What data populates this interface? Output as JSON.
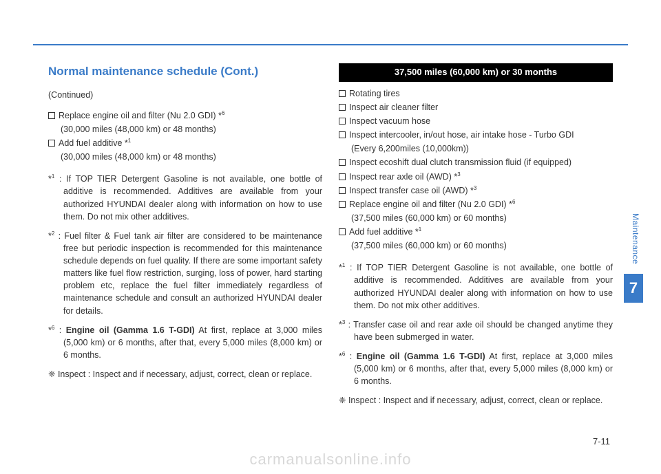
{
  "colors": {
    "accent": "#3a7bc8",
    "text": "#333333",
    "bar_bg": "#000000",
    "bar_fg": "#ffffff",
    "watermark": "#d8d8d8"
  },
  "heading": "Normal maintenance schedule (Cont.)",
  "left": {
    "continued": "(Continued)",
    "items": [
      {
        "text": "Replace engine oil and filter (Nu 2.0 GDI) *",
        "sup": "6",
        "sub": "(30,000 miles (48,000 km) or 48 months)"
      },
      {
        "text": "Add fuel additive *",
        "sup": "1",
        "sub": "(30,000 miles (48,000 km) or 48 months)"
      }
    ],
    "footnotes": [
      {
        "mark": "*",
        "sup": "1",
        "lead": " : ",
        "bold": "",
        "text": "If TOP TIER Detergent Gasoline is not available, one bottle of additive is recommended. Additives are available from your authorized HYUNDAI dealer along with information on how to use them. Do not mix other additives."
      },
      {
        "mark": "*",
        "sup": "2",
        "lead": " : ",
        "bold": "",
        "text": "Fuel filter & Fuel tank air filter are considered to be maintenance free but periodic inspection is recommended for this maintenance schedule depends on fuel quality. If there are some important safety matters like fuel flow restriction, surging, loss of power, hard starting problem etc, replace the fuel filter immediately regardless  of maintenance schedule and consult an authorized HYUNDAI dealer for details."
      },
      {
        "mark": "*",
        "sup": "6",
        "lead": " : ",
        "bold": "Engine oil (Gamma 1.6 T-GDI)",
        "text": " At first, replace at 3,000 miles (5,000 km) or 6 months, after that, every 5,000 miles (8,000 km) or 6 months."
      }
    ],
    "inspect": "❈ Inspect : Inspect and if necessary, adjust, correct, clean or replace."
  },
  "right": {
    "bar": "37,500 miles (60,000 km) or 30 months",
    "items": [
      {
        "text": "Rotating tires",
        "sup": "",
        "sub": ""
      },
      {
        "text": "Inspect air cleaner filter",
        "sup": "",
        "sub": ""
      },
      {
        "text": "Inspect vacuum hose",
        "sup": "",
        "sub": ""
      },
      {
        "text": "Inspect intercooler, in/out hose, air intake hose - Turbo GDI",
        "sup": "",
        "sub": "(Every 6,200miles (10,000km))"
      },
      {
        "text": "Inspect ecoshift dual clutch transmission fluid (if equipped)",
        "sup": "",
        "sub": ""
      },
      {
        "text": "Inspect rear axle oil (AWD) *",
        "sup": "3",
        "sub": ""
      },
      {
        "text": "Inspect transfer case oil (AWD) *",
        "sup": "3",
        "sub": ""
      },
      {
        "text": "Replace engine oil and filter (Nu 2.0 GDI) *",
        "sup": "6",
        "sub": "(37,500 miles (60,000 km) or 60 months)"
      },
      {
        "text": "Add fuel additive *",
        "sup": "1",
        "sub": "(37,500 miles (60,000 km) or 60 months)"
      }
    ],
    "footnotes": [
      {
        "mark": "*",
        "sup": "1",
        "lead": " : ",
        "bold": "",
        "text": "If TOP TIER Detergent Gasoline is not available, one bottle of additive is recommended. Additives are available from your authorized HYUNDAI dealer along with information on how to use them. Do not mix other additives."
      },
      {
        "mark": "*",
        "sup": "3",
        "lead": " : ",
        "bold": "",
        "text": "Transfer case oil and rear axle oil should be changed anytime they have been submerged in water."
      },
      {
        "mark": "*",
        "sup": "6",
        "lead": " : ",
        "bold": "Engine oil (Gamma 1.6 T-GDI)",
        "text": " At first, replace at 3,000 miles (5,000 km) or 6 months, after that, every 5,000 miles (8,000 km) or 6 months."
      }
    ],
    "inspect": "❈ Inspect : Inspect and if necessary, adjust, correct, clean or replace."
  },
  "side": {
    "label": "Maintenance",
    "chapter": "7"
  },
  "page_number": "7-11",
  "watermark": "carmanualsonline.info"
}
